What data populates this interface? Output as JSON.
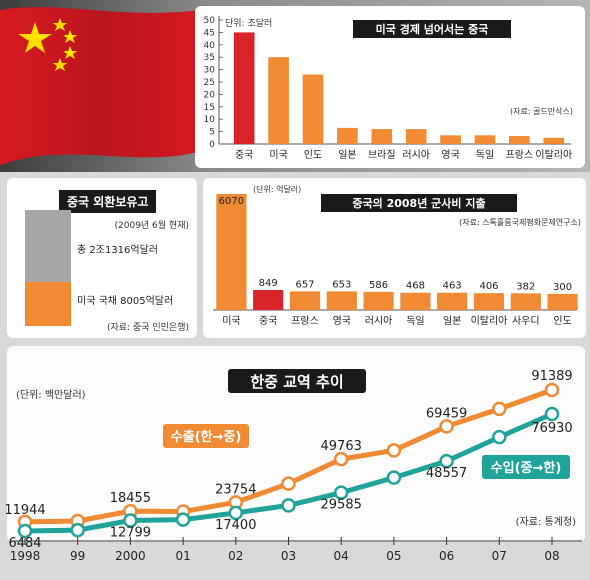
{
  "chart_data": [
    {
      "type": "bar",
      "title": "미국 경제 넘어서는 중국",
      "unit_label": "단위: 조달러",
      "source": "(자료: 골드만삭스)",
      "categories": [
        "중국",
        "미국",
        "인도",
        "일본",
        "브라질",
        "러시아",
        "영국",
        "독일",
        "프랑스",
        "이탈리아"
      ],
      "values": [
        45,
        35,
        28,
        6.5,
        6,
        6,
        3.5,
        3.5,
        3.2,
        2.5
      ],
      "ylim": [
        0,
        50
      ],
      "yticks": [
        "0",
        "5",
        "10",
        "15",
        "20",
        "25",
        "30",
        "35",
        "40",
        "45",
        "50"
      ],
      "colors": {
        "highlight": "#d9232a",
        "bar": "#f08a33"
      }
    },
    {
      "type": "bar",
      "title": "중국 외환보유고",
      "date_note": "(2009년 6월 현재)",
      "total_label": "총 2조1316억달러",
      "us_bond_label": "미국 국채 8005억달러",
      "total": 21316,
      "us_bonds": 8005,
      "source": "(자료: 중국 인민은행)",
      "colors": {
        "total": "#a6a6a6",
        "us": "#f08a33"
      }
    },
    {
      "type": "bar",
      "title": "중국의 2008년 군사비 지출",
      "unit_label": "(단위: 억달러)",
      "source": "(자료: 스톡홀름국제평화문제연구소)",
      "categories": [
        "미국",
        "중국",
        "프랑스",
        "영국",
        "러시아",
        "독일",
        "일본",
        "이탈리아",
        "사우디",
        "인도"
      ],
      "values": [
        6070,
        849,
        657,
        653,
        586,
        468,
        463,
        406,
        382,
        300
      ],
      "value_labels": [
        "6070",
        "849",
        "657",
        "653",
        "586",
        "468",
        "463",
        "406",
        "382",
        "300"
      ]
    },
    {
      "type": "line",
      "title": "한중 교역 추이",
      "unit_label": "(단위: 백만달러)",
      "source": "(자료: 통계청)",
      "x": [
        "1998",
        "99",
        "2000",
        "01",
        "02",
        "03",
        "04",
        "05",
        "06",
        "07",
        "08"
      ],
      "series": [
        {
          "name": "수출(한→중)",
          "values": [
            11944,
            12500,
            18455,
            18200,
            23754,
            35000,
            49763,
            55000,
            69459,
            80000,
            91389
          ],
          "labeled": {
            "0": "11944",
            "2": "18455",
            "4": "23754",
            "6": "49763",
            "8": "69459",
            "10": "91389"
          },
          "color": "#f08a33"
        },
        {
          "name": "수입(중→한)",
          "values": [
            6484,
            7000,
            12799,
            13300,
            17400,
            21900,
            29585,
            38600,
            48557,
            63000,
            76930
          ],
          "labeled": {
            "0": "6484",
            "2": "12799",
            "4": "17400",
            "6": "29585",
            "8": "48557",
            "10": "76930"
          },
          "color": "#1fa39a"
        }
      ]
    }
  ]
}
